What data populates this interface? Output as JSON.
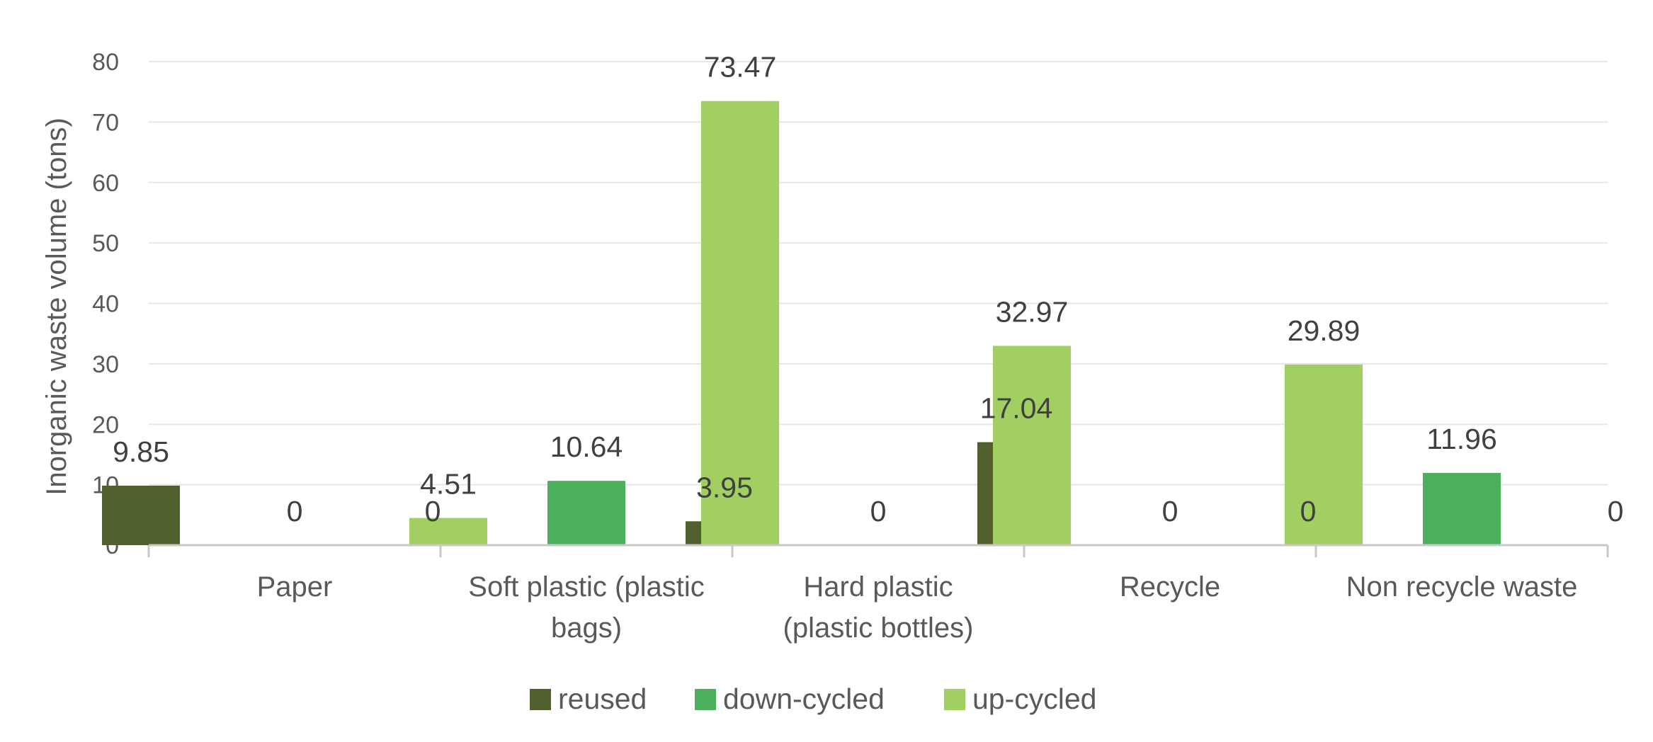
{
  "chart_data": {
    "type": "bar",
    "categories": [
      [
        "Paper"
      ],
      [
        "Soft plastic (plastic",
        "bags)"
      ],
      [
        "Hard plastic",
        "(plastic bottles)"
      ],
      [
        "Recycle"
      ],
      [
        "Non recycle waste"
      ]
    ],
    "series": [
      {
        "name": "reused",
        "color": "#4f5f2e",
        "values": [
          9.85,
          0,
          3.95,
          17.04,
          0
        ]
      },
      {
        "name": "down-cycled",
        "color": "#4caf5c",
        "values": [
          0,
          10.64,
          0,
          0,
          11.96
        ]
      },
      {
        "name": "up-cycled",
        "color": "#a1cf62",
        "values": [
          4.51,
          73.47,
          32.97,
          29.89,
          0
        ]
      }
    ],
    "data_labels": [
      [
        "9.85",
        "0",
        "3.95",
        "17.04",
        "0"
      ],
      [
        "0",
        "10.64",
        "0",
        "0",
        "11.96"
      ],
      [
        "4.51",
        "73.47",
        "32.97",
        "29.89",
        "0"
      ]
    ],
    "title": "",
    "xlabel": "",
    "ylabel": "Inorganic waste volume (tons)",
    "ylim": [
      0,
      80
    ],
    "yticks": [
      "0",
      "10",
      "20",
      "30",
      "40",
      "50",
      "60",
      "70",
      "80"
    ],
    "grid": true,
    "legend_position": "bottom"
  }
}
